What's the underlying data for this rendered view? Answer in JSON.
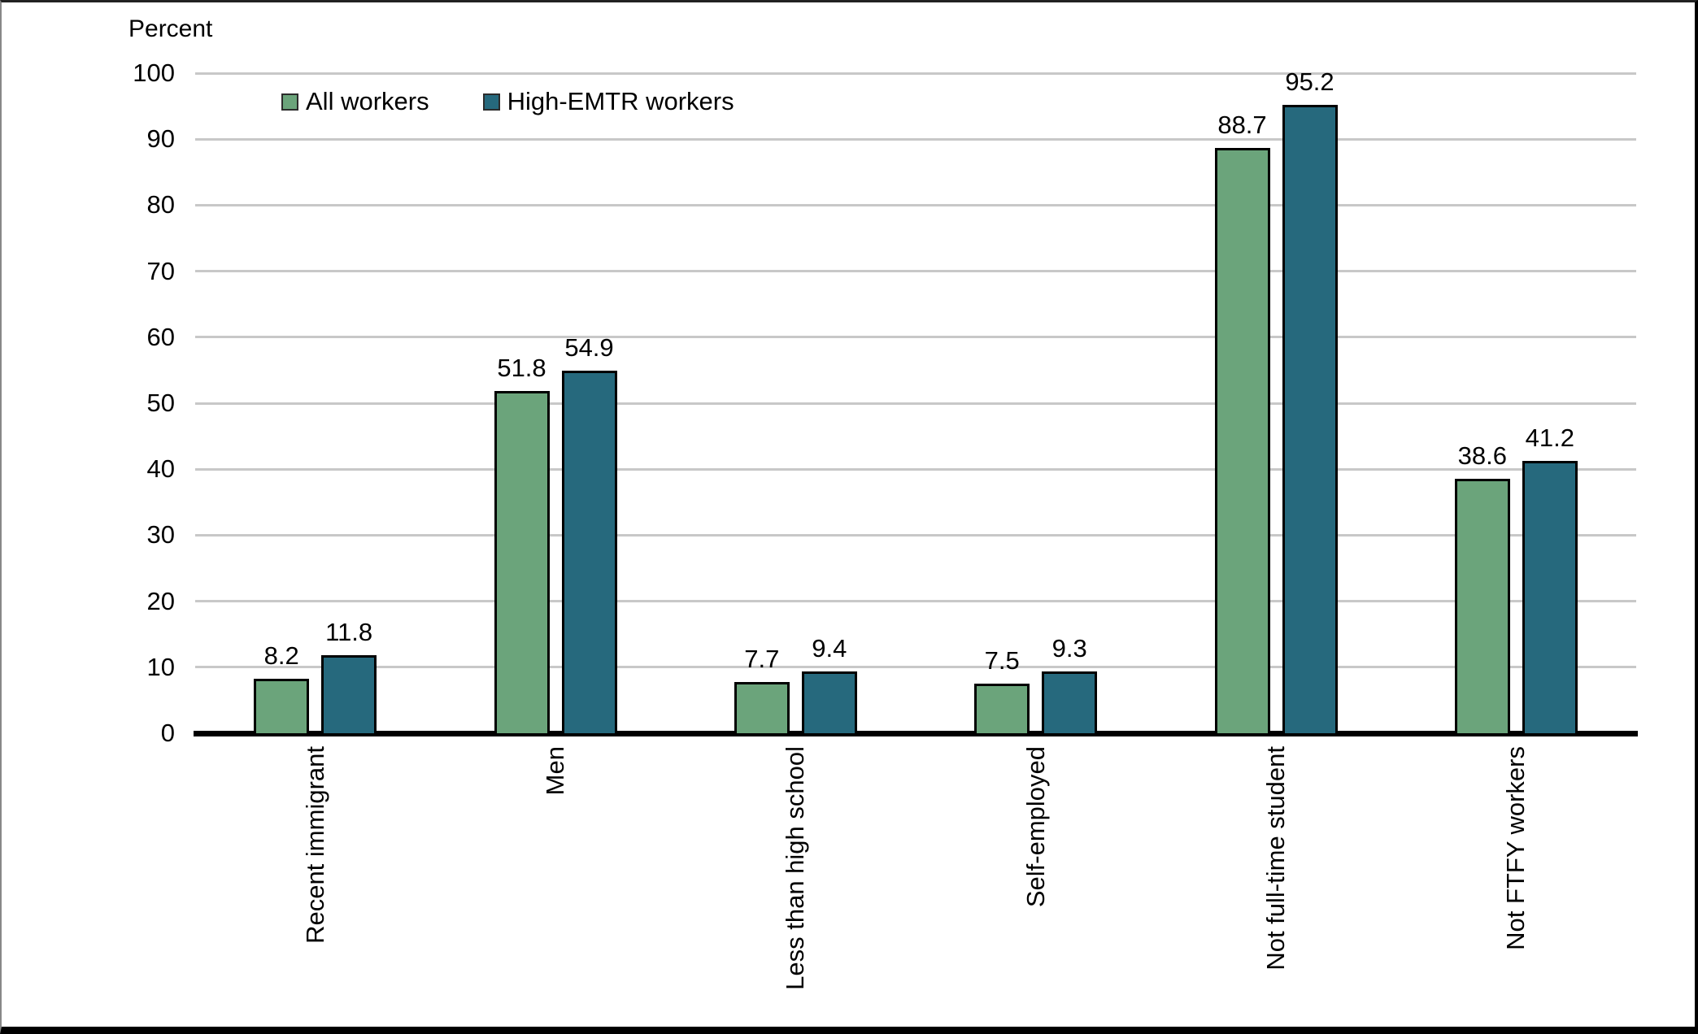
{
  "chart_data": {
    "type": "bar",
    "title": "",
    "ylabel": "Percent",
    "xlabel": "",
    "categories": [
      "Recent immigrant",
      "Men",
      "Less than high school",
      "Self-employed",
      "Not full-time student",
      "Not FTFY workers"
    ],
    "series": [
      {
        "name": "All workers",
        "color": "#6ba47b",
        "values": [
          8.2,
          51.8,
          7.7,
          7.5,
          88.7,
          38.6
        ]
      },
      {
        "name": "High-EMTR workers",
        "color": "#26697d",
        "values": [
          11.8,
          54.9,
          9.4,
          9.3,
          95.2,
          41.2
        ]
      }
    ],
    "ylim": [
      0,
      100
    ],
    "ytick_step": 10,
    "yticks": [
      "0",
      "10",
      "20",
      "30",
      "40",
      "50",
      "60",
      "70",
      "80",
      "90",
      "100"
    ],
    "grid": "horizontal",
    "gridline_color": "#c8c8c8",
    "axis_color": "#000000",
    "background_color": "#ffffff",
    "legend_position": "top-left",
    "value_labels": true,
    "x_labels_rotation": 90
  }
}
